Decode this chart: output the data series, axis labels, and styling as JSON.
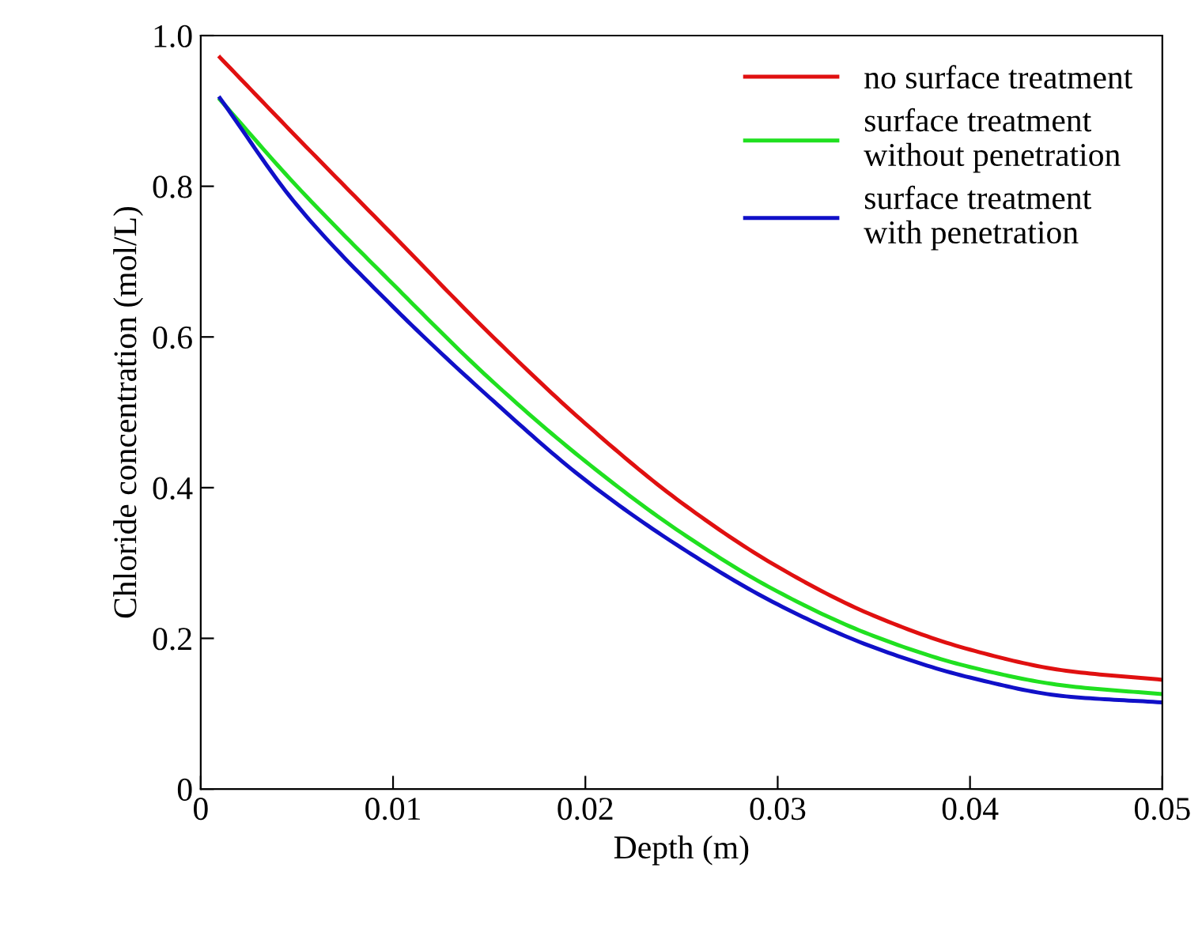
{
  "chart_data": {
    "type": "line",
    "xlabel": "Depth (m)",
    "ylabel": "Chloride concentration (mol/L)",
    "xlim": [
      0,
      0.05
    ],
    "ylim": [
      0,
      1.0
    ],
    "xticks": [
      0,
      0.01,
      0.02,
      0.03,
      0.04,
      0.05
    ],
    "yticks": [
      0,
      0.2,
      0.4,
      0.6,
      0.8,
      {
        "value": 1.0,
        "label": "1.0"
      }
    ],
    "x": [
      0.001,
      0.005,
      0.01,
      0.015,
      0.02,
      0.025,
      0.03,
      0.035,
      0.04,
      0.045,
      0.05
    ],
    "grid": false,
    "legend": "top right",
    "marker": "none",
    "line_style": "solid",
    "series": [
      {
        "name": "no surface treatment",
        "color": "#e01010",
        "values": [
          0.971,
          0.865,
          0.735,
          0.605,
          0.485,
          0.38,
          0.295,
          0.23,
          0.185,
          0.157,
          0.145
        ]
      },
      {
        "name": "surface treatment\nwithout penetration",
        "color": "#20e020",
        "values": [
          0.915,
          0.8,
          0.67,
          0.545,
          0.435,
          0.34,
          0.262,
          0.203,
          0.162,
          0.137,
          0.126
        ]
      },
      {
        "name": "surface treatment\nwith penetration",
        "color": "#1010c8",
        "values": [
          0.917,
          0.775,
          0.64,
          0.52,
          0.41,
          0.32,
          0.245,
          0.188,
          0.148,
          0.123,
          0.115
        ]
      }
    ]
  }
}
